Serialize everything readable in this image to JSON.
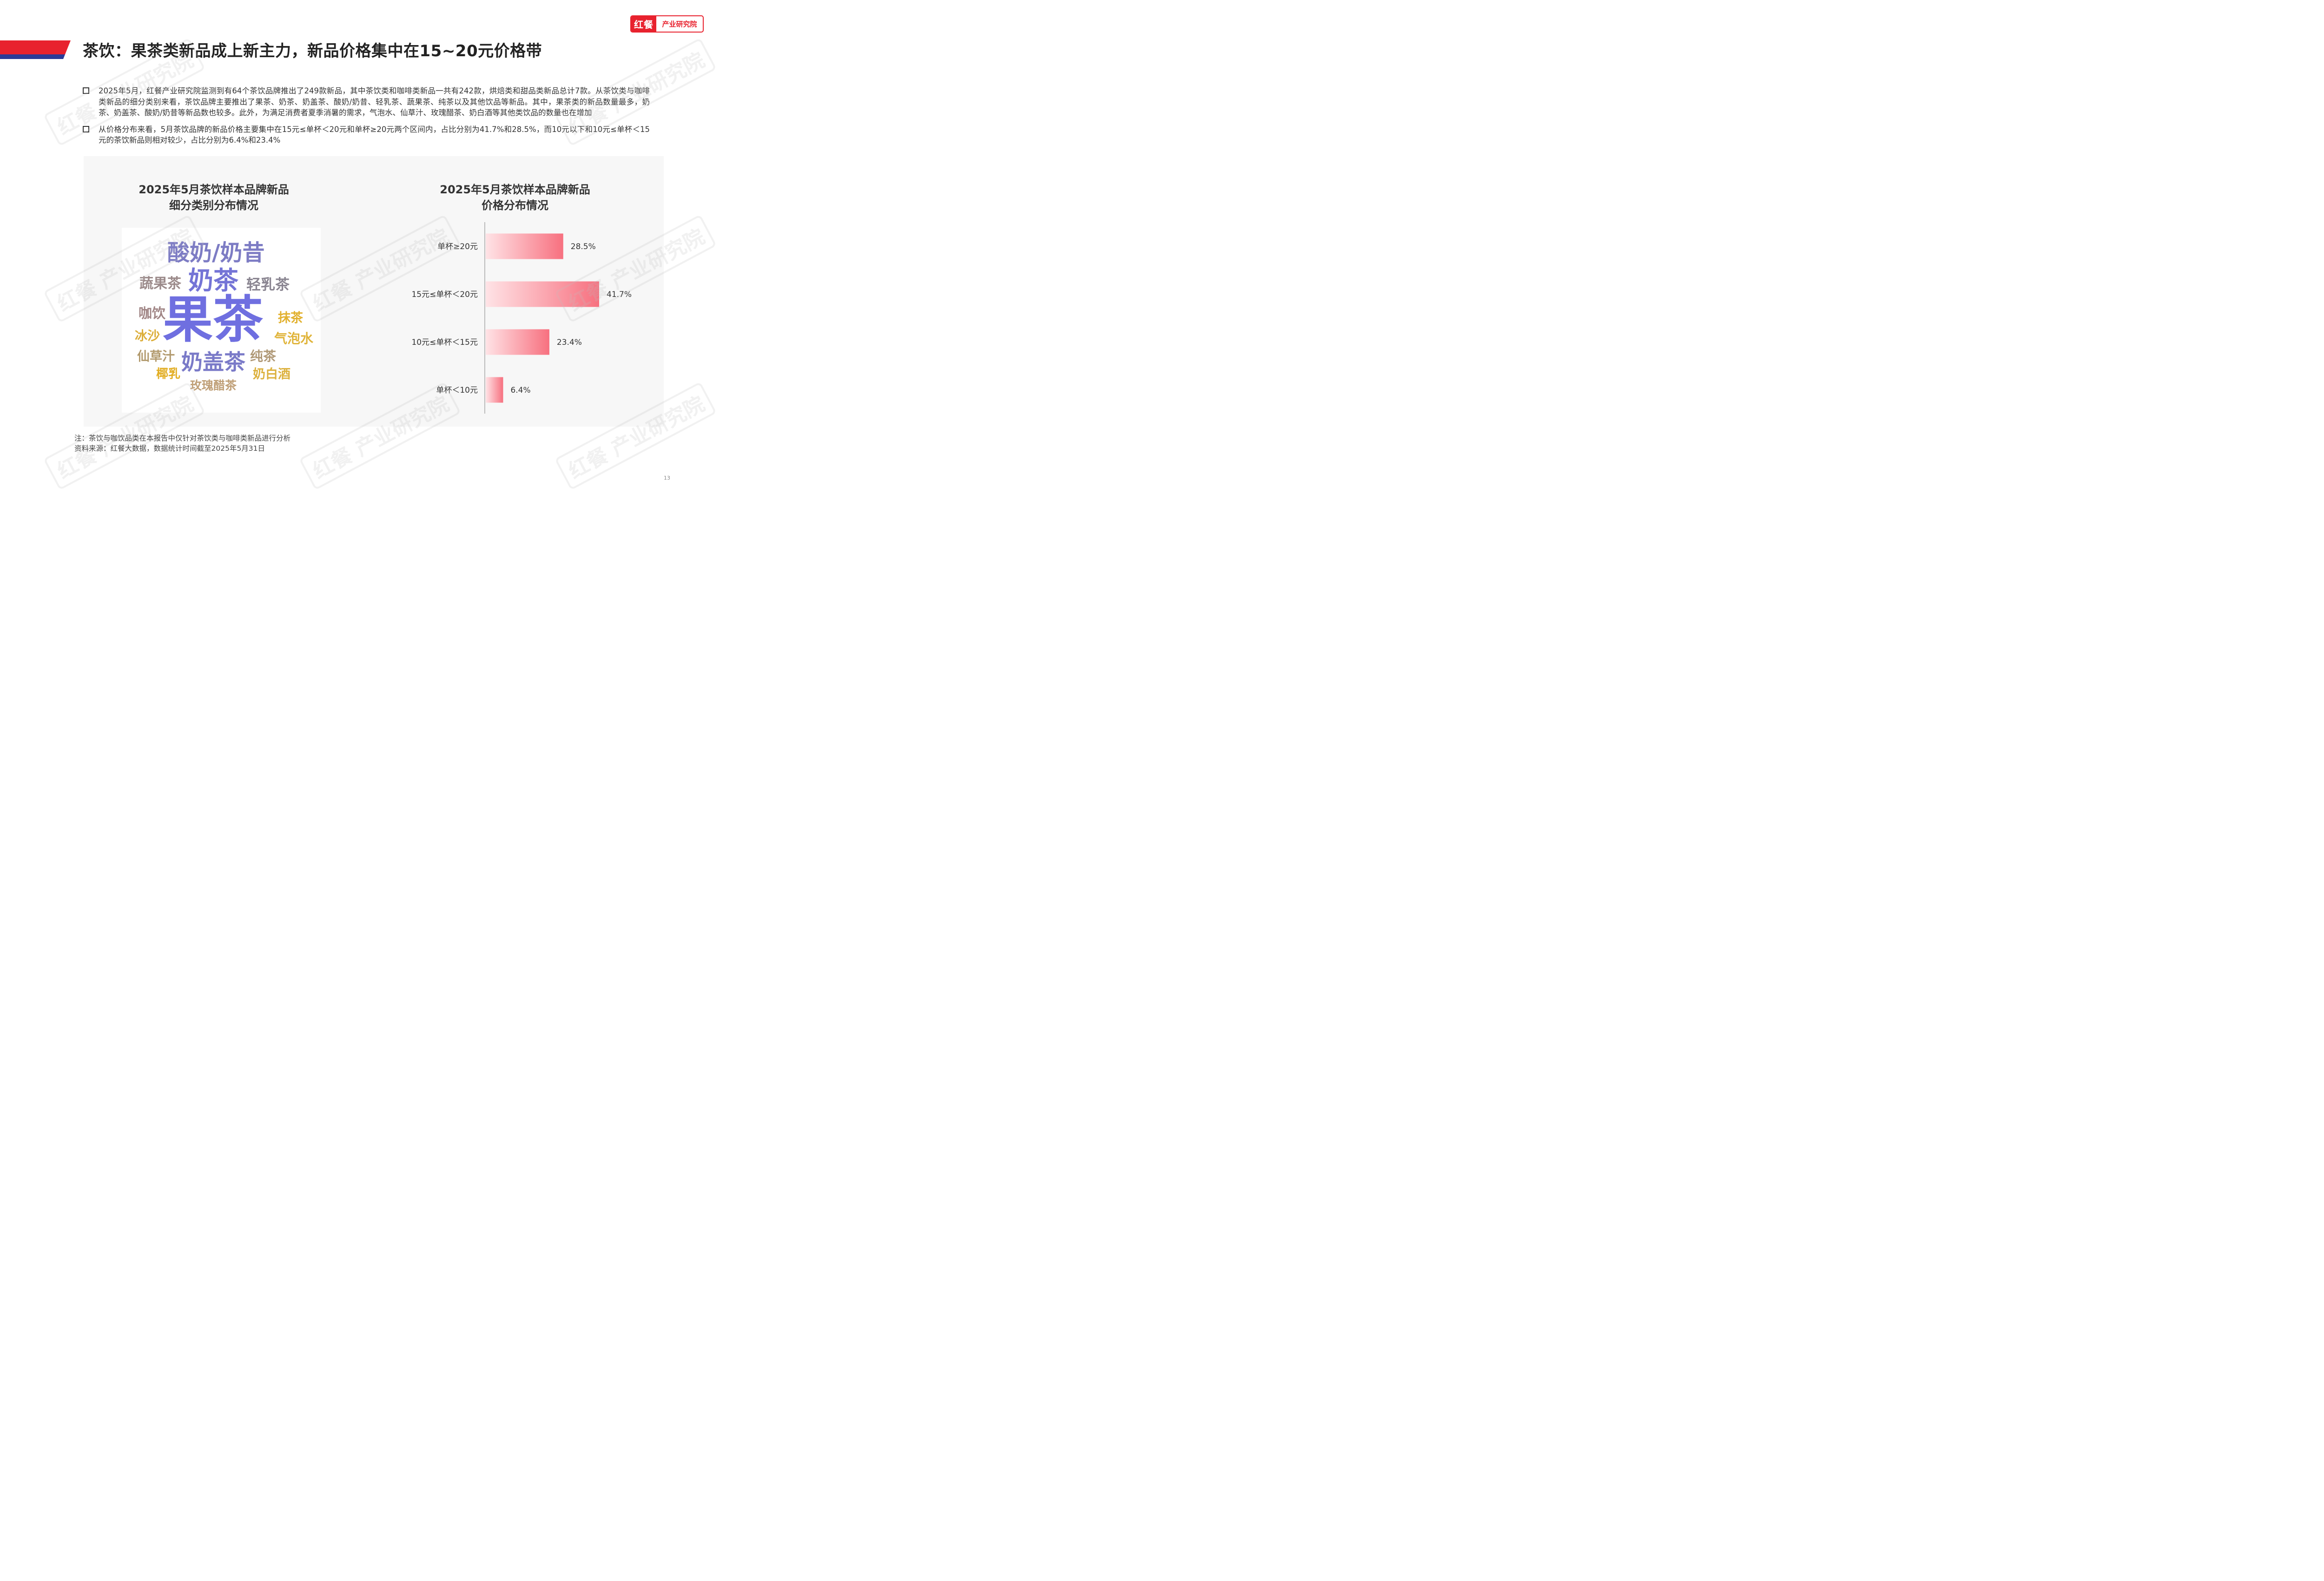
{
  "header": {
    "logo_brand": "红餐",
    "logo_text": "产业研究院",
    "title": "茶饮：果茶类新品成上新主力，新品价格集中在15~20元价格带"
  },
  "bullets": [
    "2025年5月，红餐产业研究院监测到有64个茶饮品牌推出了249款新品，其中茶饮类和咖啡类新品一共有242款，烘焙类和甜品类新品总计7款。从茶饮类与咖啡类新品的细分类别来看，茶饮品牌主要推出了果茶、奶茶、奶盖茶、酸奶/奶昔、轻乳茶、蔬果茶、纯茶以及其他饮品等新品。其中，果茶类的新品数量最多，奶茶、奶盖茶、酸奶/奶昔等新品数也较多。此外，为满足消费者夏季消暑的需求，气泡水、仙草汁、玫瑰醋茶、奶白酒等其他类饮品的数量也在增加",
    "从价格分布来看，5月茶饮品牌的新品价格主要集中在15元≤单杯＜20元和单杯≥20元两个区间内，占比分别为41.7%和28.5%，而10元以下和10元≤单杯＜15元的茶饮新品则相对较少，占比分别为6.4%和23.4%"
  ],
  "wordcloud": {
    "title_line1": "2025年5月茶饮样本品牌新品",
    "title_line2": "细分类别分布情况",
    "words": [
      {
        "text": "酸奶/奶昔",
        "color": "#7d7cc4"
      },
      {
        "text": "奶茶",
        "color": "#7474d6"
      },
      {
        "text": "蔬果茶",
        "color": "#9b8a8a"
      },
      {
        "text": "轻乳茶",
        "color": "#8a8591"
      },
      {
        "text": "咖饮",
        "color": "#a08585"
      },
      {
        "text": "果茶",
        "color": "#6f6fe0"
      },
      {
        "text": "抹茶",
        "color": "#e2b12f"
      },
      {
        "text": "冰沙",
        "color": "#dcae3a"
      },
      {
        "text": "气泡水",
        "color": "#e0b43a"
      },
      {
        "text": "仙草汁",
        "color": "#b29a6e"
      },
      {
        "text": "奶盖茶",
        "color": "#7a7ac8"
      },
      {
        "text": "纯茶",
        "color": "#b09977"
      },
      {
        "text": "椰乳",
        "color": "#e2ae24"
      },
      {
        "text": "奶白酒",
        "color": "#dcb13e"
      },
      {
        "text": "玫瑰醋茶",
        "color": "#c0a078"
      }
    ]
  },
  "chart_data": {
    "type": "bar",
    "orientation": "horizontal",
    "title": "2025年5月茶饮样本品牌新品价格分布情况",
    "categories": [
      "单杯≥20元",
      "15元≤单杯＜20元",
      "10元≤单杯＜15元",
      "单杯＜10元"
    ],
    "values": [
      28.5,
      41.7,
      23.4,
      6.4
    ],
    "value_labels": [
      "28.5%",
      "41.7%",
      "23.4%",
      "6.4%"
    ],
    "unit": "%",
    "xlim": [
      0,
      41.7
    ],
    "bar_color_start": "#ffe3e6",
    "bar_color_end": "#f7707f",
    "grid": false,
    "legend": "none"
  },
  "chart_title_lines": [
    "2025年5月茶饮样本品牌新品",
    "价格分布情况"
  ],
  "watermark_text": "红餐 产业研究院",
  "notes": {
    "note": "注：茶饮与咖饮品类在本报告中仅针对茶饮类与咖啡类新品进行分析",
    "source": "资料来源：红餐大数据，数据统计时间截至2025年5月31日"
  },
  "page_number": "13",
  "colors": {
    "brand_red": "#e8222e",
    "band_blue": "#2b3a97"
  }
}
